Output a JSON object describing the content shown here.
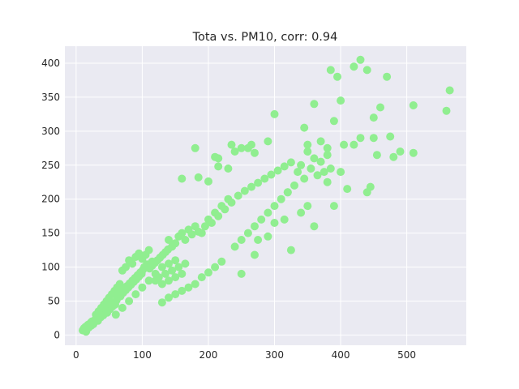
{
  "chart_data": {
    "type": "scatter",
    "title": "Tota vs. PM10, corr: 0.94",
    "xlabel": "",
    "ylabel": "",
    "xlim": [
      -17,
      590
    ],
    "ylim": [
      -15,
      425
    ],
    "xticks": [
      0,
      100,
      200,
      300,
      400,
      500
    ],
    "yticks": [
      0,
      50,
      100,
      150,
      200,
      250,
      300,
      350,
      400
    ],
    "grid": true,
    "marker_color": "#90EE90",
    "background_color": "#EAEAF2",
    "grid_color": "#FFFFFF",
    "series": [
      {
        "points": [
          [
            10,
            7
          ],
          [
            12,
            10
          ],
          [
            14,
            12
          ],
          [
            16,
            9
          ],
          [
            18,
            15
          ],
          [
            20,
            13
          ],
          [
            22,
            18
          ],
          [
            24,
            20
          ],
          [
            26,
            16
          ],
          [
            28,
            22
          ],
          [
            15,
            5
          ],
          [
            19,
            11
          ],
          [
            23,
            14
          ],
          [
            27,
            19
          ],
          [
            31,
            24
          ],
          [
            33,
            21
          ],
          [
            35,
            28
          ],
          [
            37,
            26
          ],
          [
            39,
            31
          ],
          [
            41,
            29
          ],
          [
            43,
            34
          ],
          [
            45,
            36
          ],
          [
            47,
            33
          ],
          [
            49,
            40
          ],
          [
            51,
            38
          ],
          [
            53,
            44
          ],
          [
            55,
            42
          ],
          [
            57,
            47
          ],
          [
            59,
            45
          ],
          [
            61,
            51
          ],
          [
            30,
            30
          ],
          [
            34,
            35
          ],
          [
            38,
            40
          ],
          [
            42,
            45
          ],
          [
            46,
            50
          ],
          [
            50,
            55
          ],
          [
            54,
            60
          ],
          [
            58,
            65
          ],
          [
            62,
            70
          ],
          [
            66,
            75
          ],
          [
            63,
            55
          ],
          [
            65,
            60
          ],
          [
            67,
            57
          ],
          [
            69,
            64
          ],
          [
            71,
            62
          ],
          [
            73,
            68
          ],
          [
            75,
            66
          ],
          [
            77,
            72
          ],
          [
            79,
            70
          ],
          [
            81,
            76
          ],
          [
            83,
            74
          ],
          [
            85,
            80
          ],
          [
            87,
            78
          ],
          [
            89,
            84
          ],
          [
            91,
            82
          ],
          [
            93,
            88
          ],
          [
            95,
            86
          ],
          [
            97,
            92
          ],
          [
            99,
            90
          ],
          [
            101,
            96
          ],
          [
            60,
            30
          ],
          [
            70,
            40
          ],
          [
            80,
            50
          ],
          [
            90,
            60
          ],
          [
            100,
            70
          ],
          [
            110,
            80
          ],
          [
            120,
            90
          ],
          [
            130,
            100
          ],
          [
            140,
            105
          ],
          [
            150,
            110
          ],
          [
            70,
            95
          ],
          [
            75,
            100
          ],
          [
            80,
            110
          ],
          [
            85,
            105
          ],
          [
            90,
            115
          ],
          [
            95,
            120
          ],
          [
            100,
            112
          ],
          [
            105,
            118
          ],
          [
            110,
            125
          ],
          [
            115,
            108
          ],
          [
            103,
            100
          ],
          [
            107,
            104
          ],
          [
            111,
            98
          ],
          [
            115,
            102
          ],
          [
            119,
            106
          ],
          [
            123,
            110
          ],
          [
            127,
            114
          ],
          [
            131,
            118
          ],
          [
            135,
            122
          ],
          [
            139,
            126
          ],
          [
            120,
            80
          ],
          [
            125,
            85
          ],
          [
            130,
            75
          ],
          [
            135,
            90
          ],
          [
            140,
            80
          ],
          [
            145,
            95
          ],
          [
            150,
            85
          ],
          [
            155,
            100
          ],
          [
            160,
            90
          ],
          [
            165,
            105
          ],
          [
            140,
            140
          ],
          [
            145,
            130
          ],
          [
            150,
            135
          ],
          [
            155,
            145
          ],
          [
            160,
            150
          ],
          [
            165,
            140
          ],
          [
            170,
            155
          ],
          [
            175,
            148
          ],
          [
            180,
            160
          ],
          [
            185,
            152
          ],
          [
            130,
            48
          ],
          [
            140,
            55
          ],
          [
            150,
            60
          ],
          [
            160,
            65
          ],
          [
            170,
            70
          ],
          [
            180,
            75
          ],
          [
            190,
            85
          ],
          [
            200,
            92
          ],
          [
            210,
            100
          ],
          [
            220,
            108
          ],
          [
            190,
            150
          ],
          [
            195,
            160
          ],
          [
            200,
            170
          ],
          [
            205,
            165
          ],
          [
            210,
            180
          ],
          [
            215,
            175
          ],
          [
            220,
            190
          ],
          [
            225,
            185
          ],
          [
            230,
            200
          ],
          [
            235,
            195
          ],
          [
            185,
            232
          ],
          [
            200,
            226
          ],
          [
            210,
            262
          ],
          [
            215,
            248
          ],
          [
            230,
            245
          ],
          [
            240,
            270
          ],
          [
            250,
            275
          ],
          [
            265,
            280
          ],
          [
            270,
            268
          ],
          [
            290,
            285
          ],
          [
            240,
            130
          ],
          [
            250,
            140
          ],
          [
            260,
            150
          ],
          [
            270,
            160
          ],
          [
            280,
            170
          ],
          [
            290,
            180
          ],
          [
            300,
            190
          ],
          [
            310,
            200
          ],
          [
            320,
            210
          ],
          [
            330,
            220
          ],
          [
            245,
            205
          ],
          [
            255,
            212
          ],
          [
            265,
            218
          ],
          [
            275,
            224
          ],
          [
            285,
            230
          ],
          [
            295,
            236
          ],
          [
            305,
            242
          ],
          [
            315,
            248
          ],
          [
            325,
            254
          ],
          [
            335,
            240
          ],
          [
            250,
            90
          ],
          [
            270,
            118
          ],
          [
            275,
            140
          ],
          [
            290,
            145
          ],
          [
            300,
            165
          ],
          [
            315,
            170
          ],
          [
            325,
            125
          ],
          [
            340,
            180
          ],
          [
            350,
            190
          ],
          [
            360,
            160
          ],
          [
            340,
            250
          ],
          [
            345,
            230
          ],
          [
            350,
            270
          ],
          [
            355,
            245
          ],
          [
            360,
            260
          ],
          [
            365,
            235
          ],
          [
            370,
            255
          ],
          [
            375,
            240
          ],
          [
            380,
            265
          ],
          [
            385,
            245
          ],
          [
            345,
            305
          ],
          [
            350,
            280
          ],
          [
            360,
            340
          ],
          [
            370,
            285
          ],
          [
            380,
            275
          ],
          [
            385,
            390
          ],
          [
            390,
            315
          ],
          [
            395,
            380
          ],
          [
            400,
            345
          ],
          [
            405,
            280
          ],
          [
            380,
            225
          ],
          [
            390,
            190
          ],
          [
            400,
            240
          ],
          [
            410,
            215
          ],
          [
            420,
            280
          ],
          [
            430,
            290
          ],
          [
            440,
            210
          ],
          [
            445,
            218
          ],
          [
            450,
            290
          ],
          [
            455,
            265
          ],
          [
            420,
            395
          ],
          [
            430,
            405
          ],
          [
            440,
            390
          ],
          [
            450,
            320
          ],
          [
            460,
            335
          ],
          [
            470,
            380
          ],
          [
            475,
            292
          ],
          [
            480,
            262
          ],
          [
            490,
            270
          ],
          [
            510,
            268
          ],
          [
            510,
            338
          ],
          [
            560,
            330
          ],
          [
            565,
            360
          ],
          [
            300,
            325
          ],
          [
            320,
            210
          ],
          [
            160,
            230
          ],
          [
            180,
            275
          ],
          [
            215,
            260
          ],
          [
            235,
            280
          ],
          [
            260,
            275
          ]
        ]
      }
    ]
  }
}
